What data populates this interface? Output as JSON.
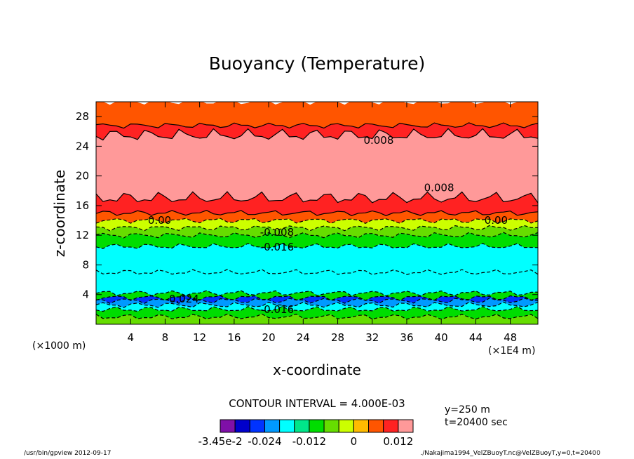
{
  "chart_data": {
    "type": "contour",
    "title": "Buoyancy (Temperature)",
    "xlabel": "x-coordinate",
    "ylabel": "z-coordinate",
    "x_unit_left": "(×1000 m)",
    "x_unit_right": "(×1E4 m)",
    "xlim": [
      0,
      51.2
    ],
    "ylim": [
      0,
      30
    ],
    "xticks": [
      4,
      8,
      12,
      16,
      20,
      24,
      28,
      32,
      36,
      40,
      44,
      48
    ],
    "yticks": [
      4,
      8,
      12,
      16,
      20,
      24,
      28
    ],
    "contour_interval_text": "CONTOUR INTERVAL = 4.000E-03",
    "meta_y": "y=250  m",
    "meta_t": "t=20400  sec",
    "colorbar": {
      "levels": [
        -0.0345,
        -0.032,
        -0.028,
        -0.024,
        -0.02,
        -0.016,
        -0.012,
        -0.008,
        -0.004,
        0,
        0.004,
        0.008,
        0.012,
        0.016
      ],
      "colors": [
        "#7f10a8",
        "#0000cc",
        "#0033ff",
        "#0099ff",
        "#00ffff",
        "#00e68a",
        "#00dd00",
        "#66dd00",
        "#ccff00",
        "#ffbb00",
        "#ff5500",
        "#ff2222",
        "#ff9999"
      ],
      "tick_labels": [
        "-3.45e-2",
        "-0.024",
        "-0.012",
        "0",
        "0.012"
      ]
    },
    "bands": [
      {
        "z0": 0,
        "z1": 1.0,
        "value": -0.008
      },
      {
        "z0": 1.0,
        "z1": 2.0,
        "value": -0.012
      },
      {
        "z0": 2.0,
        "z1": 2.6,
        "value": -0.02
      },
      {
        "z0": 2.6,
        "z1": 3.2,
        "value": -0.024
      },
      {
        "z0": 3.2,
        "z1": 3.6,
        "value": -0.028
      },
      {
        "z0": 3.6,
        "z1": 4.2,
        "value": -0.012
      },
      {
        "z0": 4.2,
        "z1": 7.0,
        "value": -0.02
      },
      {
        "z0": 7.0,
        "z1": 10.5,
        "value": -0.02
      },
      {
        "z0": 10.5,
        "z1": 12.0,
        "value": -0.012
      },
      {
        "z0": 12.0,
        "z1": 13.0,
        "value": -0.008
      },
      {
        "z0": 13.0,
        "z1": 14.0,
        "value": -0.004
      },
      {
        "z0": 14.0,
        "z1": 15.0,
        "value": 0.004
      },
      {
        "z0": 15.0,
        "z1": 17.0,
        "value": 0.008
      },
      {
        "z0": 17.0,
        "z1": 25.5,
        "value": 0.012
      },
      {
        "z0": 25.5,
        "z1": 26.8,
        "value": 0.008
      },
      {
        "z0": 26.8,
        "z1": 30.0,
        "value": 0.004
      }
    ],
    "contour_labels": [
      {
        "text": "0.008",
        "x": 31,
        "z": 24.8
      },
      {
        "text": "0.008",
        "x": 38,
        "z": 18.4
      },
      {
        "text": "0.00",
        "x": 6,
        "z": 14.0
      },
      {
        "text": "0.00",
        "x": 45,
        "z": 14.0
      },
      {
        "text": "-0.008",
        "x": 19,
        "z": 12.4
      },
      {
        "text": "-0.016",
        "x": 19,
        "z": 10.4
      },
      {
        "text": "-0.024",
        "x": 8,
        "z": 3.4
      },
      {
        "text": "-0.016",
        "x": 19,
        "z": 2.0
      }
    ]
  },
  "footer": {
    "left": "/usr/bin/gpview  2012-09-17",
    "right": "./Nakajima1994_VelZBuoyT.nc@VelZBuoyT,y=0,t=20400"
  }
}
